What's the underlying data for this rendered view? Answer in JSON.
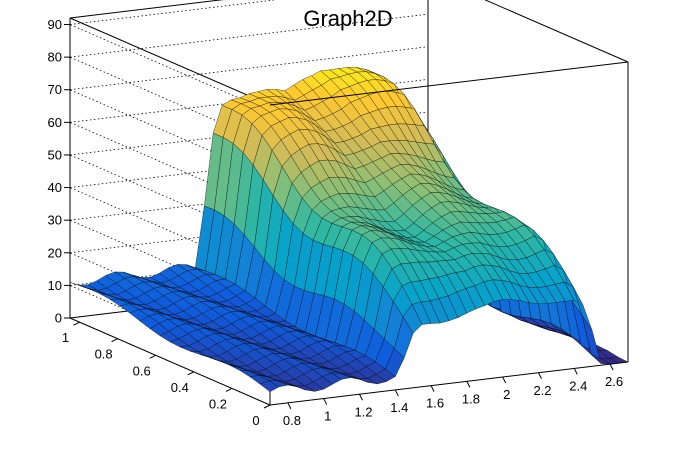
{
  "chart_data": {
    "type": "surface3d",
    "title": "Graph2D",
    "xlabel": "",
    "ylabel": "",
    "zlabel": "",
    "xlim": [
      0.7,
      2.7
    ],
    "ylim": [
      0,
      1.05
    ],
    "zlim": [
      0,
      92
    ],
    "x_ticks": [
      "0.8",
      "1",
      "1.2",
      "1.4",
      "1.6",
      "1.8",
      "2",
      "2.2",
      "2.4",
      "2.6"
    ],
    "y_ticks": [
      "0",
      "0.2",
      "0.4",
      "0.6",
      "0.8",
      "1"
    ],
    "z_ticks": [
      "0",
      "10",
      "20",
      "30",
      "40",
      "50",
      "60",
      "70",
      "80",
      "90"
    ],
    "grid": true,
    "palette": "kBird",
    "colors": [
      "#352a87",
      "#0f5cdd",
      "#1481d6",
      "#06a4ca",
      "#2eb7a4",
      "#87bf77",
      "#d1bb59",
      "#fec832",
      "#f9fb0e"
    ],
    "mesh_color": "#000000",
    "surface_profile_x": [
      0.7,
      1.4,
      1.44,
      1.48,
      1.53,
      1.6,
      1.7,
      1.8,
      1.9,
      2.0,
      2.1,
      2.2,
      2.3,
      2.4,
      2.47,
      2.5,
      2.52,
      2.55,
      2.6,
      2.7
    ],
    "surface_profile_z": [
      10,
      10,
      22,
      45,
      59,
      62,
      63,
      62,
      60,
      63,
      65,
      64,
      63,
      62,
      55,
      35,
      15,
      6,
      3,
      1
    ]
  }
}
